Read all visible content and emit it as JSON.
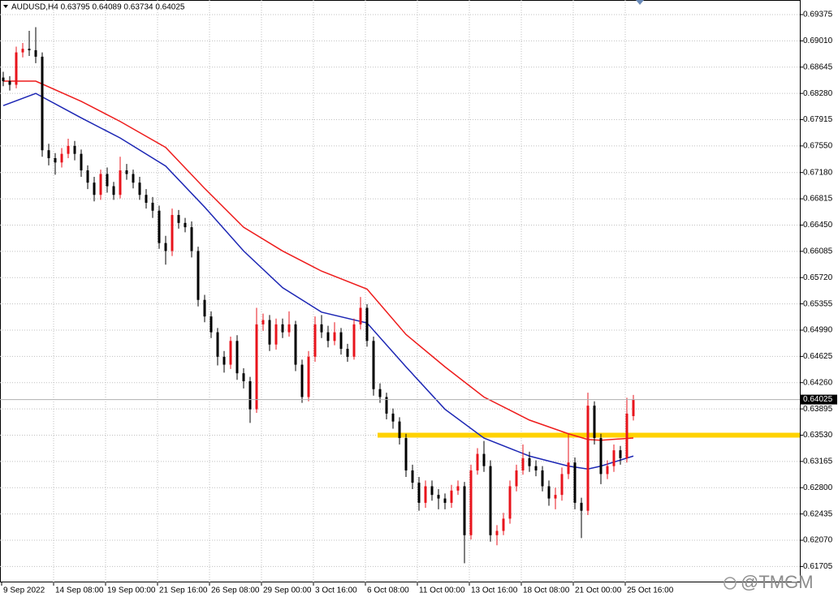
{
  "chart_data": {
    "type": "candlestick",
    "title": "AUDUSD,H4  0.63795 0.64089 0.63734 0.64025",
    "watermark": "@TMGM",
    "categories": [
      "9 Sep 2022",
      null,
      null,
      null,
      null,
      null,
      null,
      null,
      "14 Sep 08:00",
      null,
      null,
      null,
      null,
      null,
      null,
      null,
      "19 Sep 00:00",
      null,
      null,
      null,
      null,
      null,
      null,
      null,
      "21 Sep 16:00",
      null,
      null,
      null,
      null,
      null,
      null,
      null,
      "26 Sep 08:00",
      null,
      null,
      null,
      null,
      null,
      null,
      null,
      "29 Sep 00:00",
      null,
      null,
      null,
      null,
      null,
      null,
      null,
      "3 Oct 16:00",
      null,
      null,
      null,
      null,
      null,
      null,
      null,
      "6 Oct 08:00",
      null,
      null,
      null,
      null,
      null,
      null,
      null,
      "11 Oct 00:00",
      null,
      null,
      null,
      null,
      null,
      null,
      null,
      "13 Oct 16:00",
      null,
      null,
      null,
      null,
      null,
      null,
      null,
      "18 Oct 08:00",
      null,
      null,
      null,
      null,
      null,
      null,
      null,
      "21 Oct 00:00",
      null,
      null,
      null,
      null,
      null,
      null,
      null,
      "25 Oct 16:00",
      null
    ],
    "open": [
      0.685,
      0.6845,
      0.684,
      0.6885,
      0.689,
      0.6888,
      0.6879,
      0.6749,
      0.6738,
      0.6732,
      0.6744,
      0.6755,
      0.6744,
      0.6721,
      0.6704,
      0.6687,
      0.6716,
      0.6699,
      0.6687,
      0.6721,
      0.6716,
      0.6704,
      0.6687,
      0.6676,
      0.6665,
      0.662,
      0.6609,
      0.6659,
      0.6648,
      0.6642,
      0.6609,
      0.6541,
      0.6518,
      0.6496,
      0.6462,
      0.6451,
      0.6484,
      0.6439,
      0.6428,
      0.6389,
      0.6507,
      0.6513,
      0.6479,
      0.6507,
      0.6496,
      0.6507,
      0.6451,
      0.6406,
      0.6462,
      0.6507,
      0.6496,
      0.6484,
      0.6496,
      0.6473,
      0.6462,
      0.6507,
      0.653,
      0.6484,
      0.6417,
      0.6406,
      0.6383,
      0.6372,
      0.6349,
      0.6304,
      0.6287,
      0.6259,
      0.6282,
      0.627,
      0.6265,
      0.6259,
      0.6276,
      0.6282,
      0.6214,
      0.6304,
      0.6327,
      0.631,
      0.6214,
      0.622,
      0.6237,
      0.6282,
      0.6304,
      0.6321,
      0.631,
      0.6304,
      0.6282,
      0.6265,
      0.627,
      0.6299,
      0.6315,
      0.6259,
      0.6248,
      0.6394,
      0.6349,
      0.6299,
      0.631,
      0.6332,
      0.6321,
      0.63795
    ],
    "high": [
      0.6858,
      0.6852,
      0.6893,
      0.6898,
      0.6915,
      0.692,
      0.6885,
      0.6758,
      0.6745,
      0.6752,
      0.6765,
      0.6762,
      0.675,
      0.6728,
      0.6712,
      0.6722,
      0.6725,
      0.6705,
      0.674,
      0.673,
      0.6722,
      0.6712,
      0.6695,
      0.6684,
      0.6672,
      0.663,
      0.6668,
      0.6666,
      0.6655,
      0.665,
      0.6615,
      0.6548,
      0.6525,
      0.6502,
      0.647,
      0.649,
      0.6492,
      0.6446,
      0.6434,
      0.653,
      0.6522,
      0.652,
      0.6515,
      0.6515,
      0.6525,
      0.6512,
      0.6458,
      0.647,
      0.6518,
      0.652,
      0.6505,
      0.651,
      0.6502,
      0.648,
      0.6515,
      0.6545,
      0.6535,
      0.649,
      0.6425,
      0.6412,
      0.639,
      0.6378,
      0.6355,
      0.6312,
      0.6295,
      0.629,
      0.629,
      0.6278,
      0.6272,
      0.6284,
      0.629,
      0.6288,
      0.6312,
      0.6335,
      0.6345,
      0.6318,
      0.6228,
      0.6245,
      0.629,
      0.6312,
      0.634,
      0.633,
      0.6318,
      0.631,
      0.629,
      0.628,
      0.6308,
      0.6355,
      0.6322,
      0.6266,
      0.6412,
      0.64,
      0.6355,
      0.6318,
      0.634,
      0.6338,
      0.6405,
      0.64089
    ],
    "low": [
      0.6838,
      0.6832,
      0.6835,
      0.6878,
      0.688,
      0.687,
      0.674,
      0.6728,
      0.6715,
      0.6725,
      0.6738,
      0.6735,
      0.6712,
      0.6695,
      0.6678,
      0.668,
      0.669,
      0.668,
      0.6682,
      0.6708,
      0.6696,
      0.668,
      0.6668,
      0.6655,
      0.6612,
      0.659,
      0.6602,
      0.664,
      0.6635,
      0.66,
      0.6532,
      0.651,
      0.6488,
      0.645,
      0.644,
      0.6445,
      0.643,
      0.6418,
      0.637,
      0.6384,
      0.6498,
      0.647,
      0.6472,
      0.6488,
      0.649,
      0.6442,
      0.6398,
      0.64,
      0.6455,
      0.6488,
      0.6475,
      0.6478,
      0.6465,
      0.6455,
      0.6458,
      0.65,
      0.6476,
      0.6408,
      0.6398,
      0.6375,
      0.6362,
      0.634,
      0.6295,
      0.6278,
      0.6248,
      0.6252,
      0.6262,
      0.625,
      0.625,
      0.6252,
      0.627,
      0.6175,
      0.6208,
      0.6298,
      0.6302,
      0.6205,
      0.62,
      0.6214,
      0.623,
      0.6275,
      0.6298,
      0.6302,
      0.6296,
      0.6275,
      0.6255,
      0.625,
      0.6262,
      0.6292,
      0.625,
      0.621,
      0.6242,
      0.634,
      0.6285,
      0.6292,
      0.6302,
      0.6312,
      0.6315,
      0.63734
    ],
    "close": [
      0.6845,
      0.684,
      0.6885,
      0.689,
      0.6888,
      0.6879,
      0.6749,
      0.6738,
      0.6732,
      0.6744,
      0.6755,
      0.6744,
      0.6721,
      0.6704,
      0.6687,
      0.6716,
      0.6699,
      0.6687,
      0.6721,
      0.6716,
      0.6704,
      0.6687,
      0.6676,
      0.6665,
      0.662,
      0.6609,
      0.6659,
      0.6648,
      0.6642,
      0.6609,
      0.6541,
      0.6518,
      0.6496,
      0.6462,
      0.6451,
      0.6484,
      0.6439,
      0.6428,
      0.6389,
      0.6507,
      0.6513,
      0.6479,
      0.6507,
      0.6496,
      0.6507,
      0.6451,
      0.6406,
      0.6462,
      0.6507,
      0.6496,
      0.6484,
      0.6496,
      0.6473,
      0.6462,
      0.6507,
      0.653,
      0.6484,
      0.6417,
      0.6406,
      0.6383,
      0.6372,
      0.6349,
      0.6304,
      0.6287,
      0.6259,
      0.6282,
      0.627,
      0.6265,
      0.6259,
      0.6276,
      0.6282,
      0.6214,
      0.6304,
      0.6327,
      0.631,
      0.6214,
      0.622,
      0.6237,
      0.6282,
      0.6304,
      0.6321,
      0.631,
      0.6304,
      0.6282,
      0.6265,
      0.627,
      0.6299,
      0.6315,
      0.6259,
      0.6248,
      0.6394,
      0.6349,
      0.6299,
      0.631,
      0.6332,
      0.6321,
      0.6383,
      0.64025
    ],
    "up_color": "#e8141c",
    "down_color": "#000000",
    "moving_averages": [
      {
        "color": "#ee1c1c",
        "x": [
          0,
          5,
          12,
          18,
          25,
          31,
          37,
          43,
          49,
          56,
          62,
          68,
          74,
          81,
          87,
          90,
          92,
          97
        ],
        "values": [
          0.6845,
          0.6845,
          0.6817,
          0.6789,
          0.6753,
          0.6696,
          0.6642,
          0.6609,
          0.6581,
          0.6556,
          0.6493,
          0.6448,
          0.6406,
          0.6374,
          0.6355,
          0.6347,
          0.6346,
          0.6349
        ]
      },
      {
        "color": "#1c26b4",
        "x": [
          0,
          5,
          12,
          18,
          25,
          31,
          37,
          43,
          49,
          56,
          62,
          68,
          74,
          81,
          87,
          90,
          92,
          97
        ],
        "values": [
          0.6811,
          0.6828,
          0.6794,
          0.6766,
          0.6727,
          0.667,
          0.6609,
          0.6558,
          0.6524,
          0.6509,
          0.6448,
          0.6389,
          0.6349,
          0.6324,
          0.631,
          0.6306,
          0.631,
          0.6324
        ]
      }
    ],
    "level": {
      "value": 0.6353,
      "color": "#ffd200"
    },
    "last_price": 0.64025,
    "ylim": [
      0.61484,
      0.69578
    ],
    "yticks": [
      0.61705,
      {
        "value": 0.6207,
        "label": "0.62070"
      },
      0.62435,
      {
        "value": 0.628,
        "label": "0.62800"
      },
      0.63165,
      {
        "value": 0.6353,
        "label": "0.63530"
      },
      0.63895,
      {
        "value": 0.6426,
        "label": "0.64260"
      },
      0.64625,
      {
        "value": 0.6499,
        "label": "0.64990"
      },
      0.65355,
      {
        "value": 0.6572,
        "label": "0.65720"
      },
      0.66085,
      {
        "value": 0.6645,
        "label": "0.66450"
      },
      0.66815,
      {
        "value": 0.6718,
        "label": "0.67180"
      },
      {
        "value": 0.6755,
        "label": "0.67550"
      },
      0.67915,
      {
        "value": 0.6828,
        "label": "0.68280"
      },
      0.68645,
      {
        "value": 0.6901,
        "label": "0.69010"
      },
      0.69375
    ],
    "grid": true
  }
}
